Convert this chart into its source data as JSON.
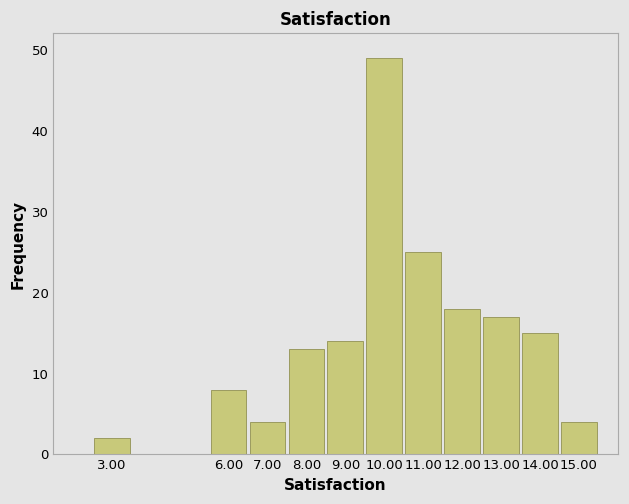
{
  "title": "Satisfaction",
  "xlabel": "Satisfaction",
  "ylabel": "Frequency",
  "bar_color": "#C8C97A",
  "bar_edge_color": "#9B9B60",
  "background_color": "#E5E5E5",
  "tick_positions": [
    3,
    6,
    7,
    8,
    9,
    10,
    11,
    12,
    13,
    14,
    15
  ],
  "frequencies": [
    2,
    8,
    4,
    13,
    14,
    49,
    25,
    18,
    17,
    15,
    4
  ],
  "tick_labels": [
    "3.00",
    "6.00",
    "7.00",
    "8.00",
    "9.00",
    "10.00",
    "11.00",
    "12.00",
    "13.00",
    "14.00",
    "15.00"
  ],
  "yticks": [
    0,
    10,
    20,
    30,
    40,
    50
  ],
  "ylim": [
    0,
    52
  ],
  "bar_width": 0.92,
  "title_fontsize": 12,
  "label_fontsize": 11,
  "tick_fontsize": 9.5
}
